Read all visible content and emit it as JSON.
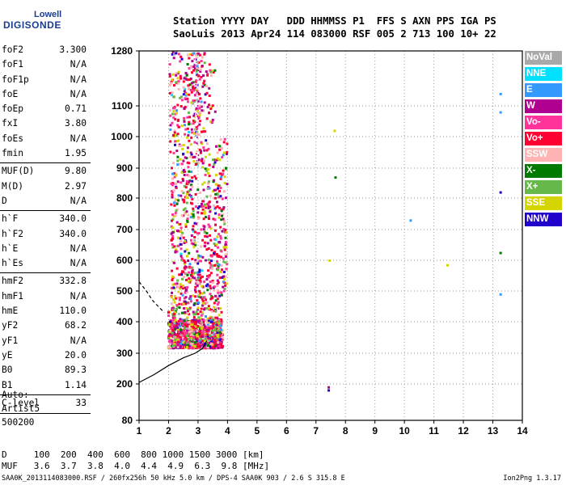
{
  "logo": {
    "line1": "Lowell",
    "line2": "DIGISONDE"
  },
  "header": {
    "line1": "Station YYYY DAY   DDD HHMMSS P1  FFS S AXN PPS IGA PS",
    "line2": "SaoLuis 2013 Apr24 114 083000 RSF 005 2 713 100 10+ 22"
  },
  "params": [
    {
      "name": "foF2",
      "value": "3.300"
    },
    {
      "name": "foF1",
      "value": "N/A"
    },
    {
      "name": "foF1p",
      "value": "N/A"
    },
    {
      "name": "foE",
      "value": "N/A"
    },
    {
      "name": "foEp",
      "value": "0.71"
    },
    {
      "name": "fxI",
      "value": "3.80"
    },
    {
      "name": "foEs",
      "value": "N/A"
    },
    {
      "name": "fmin",
      "value": "1.95"
    },
    {
      "name": "MUF(D)",
      "value": "9.80"
    },
    {
      "name": "M(D)",
      "value": "2.97"
    },
    {
      "name": "D",
      "value": "N/A"
    },
    {
      "name": "h`F",
      "value": "340.0"
    },
    {
      "name": "h`F2",
      "value": "340.0"
    },
    {
      "name": "h`E",
      "value": "N/A"
    },
    {
      "name": "h`Es",
      "value": "N/A"
    },
    {
      "name": "hmF2",
      "value": "332.8"
    },
    {
      "name": "hmF1",
      "value": "N/A"
    },
    {
      "name": "hmE",
      "value": "110.0"
    },
    {
      "name": "yF2",
      "value": "68.2"
    },
    {
      "name": "yF1",
      "value": "N/A"
    },
    {
      "name": "yE",
      "value": "20.0"
    },
    {
      "name": "B0",
      "value": "89.3"
    },
    {
      "name": "B1",
      "value": "1.14"
    },
    {
      "name": "C-level",
      "value": "33"
    }
  ],
  "auto": {
    "line1": "Auto:",
    "line2": "Artist5",
    "line3": "500200"
  },
  "legend": [
    {
      "label": "NoVal",
      "color": "#a9a9a9"
    },
    {
      "label": "NNE",
      "color": "#00e0ff"
    },
    {
      "label": "E",
      "color": "#3399ff"
    },
    {
      "label": "W",
      "color": "#b0008f"
    },
    {
      "label": "Vo-",
      "color": "#ff3399"
    },
    {
      "label": "Vo+",
      "color": "#ff0033"
    },
    {
      "label": "SSW",
      "color": "#ffb3b3"
    },
    {
      "label": "X-",
      "color": "#007a00"
    },
    {
      "label": "X+",
      "color": "#66b84a"
    },
    {
      "label": "SSE",
      "color": "#d4d400"
    },
    {
      "label": "NNW",
      "color": "#2200cc"
    }
  ],
  "footer": {
    "line1": "D     100  200  400  600  800 1000 1500 3000 [km]",
    "line2": "MUF   3.6  3.7  3.8  4.0  4.4  4.9  6.3  9.8 [MHz]",
    "line3": "SAA0K_2013114083000.RSF / 260fx256h 50 kHz 5.0 km / DPS-4 SAA0K 903 / 2.6 S 315.8 E",
    "version": "Ion2Png 1.3.17"
  },
  "chart_data": {
    "type": "scatter",
    "x_ticks": [
      "1",
      "2",
      "3",
      "4",
      "5",
      "6",
      "7",
      "8",
      "9",
      "10",
      "11",
      "12",
      "13",
      "14"
    ],
    "y_ticks": [
      "80",
      "200",
      "300",
      "400",
      "500",
      "600",
      "700",
      "800",
      "900",
      "1000",
      "1100",
      "1280"
    ],
    "xlim": [
      1,
      14
    ],
    "ylim": [
      80,
      1280
    ],
    "grid": true,
    "echo_region": {
      "f_min": 1.95,
      "f_max": 4.7,
      "h_min": 320,
      "h_max": 1280
    },
    "isolated_points": [
      {
        "x": 7.42,
        "y": 190,
        "series": "W"
      },
      {
        "x": 7.42,
        "y": 180,
        "series": "NNW"
      },
      {
        "x": 7.65,
        "y": 870,
        "series": "X-"
      },
      {
        "x": 7.62,
        "y": 1020,
        "series": "SSE"
      },
      {
        "x": 7.45,
        "y": 600,
        "series": "SSE"
      },
      {
        "x": 10.2,
        "y": 730,
        "series": "E"
      },
      {
        "x": 11.45,
        "y": 585,
        "series": "SSE"
      },
      {
        "x": 13.25,
        "y": 1140,
        "series": "E"
      },
      {
        "x": 13.25,
        "y": 1080,
        "series": "E"
      },
      {
        "x": 13.25,
        "y": 820,
        "series": "NNW"
      },
      {
        "x": 13.25,
        "y": 625,
        "series": "X-"
      },
      {
        "x": 13.25,
        "y": 490,
        "series": "E"
      }
    ],
    "trace_curve": [
      {
        "x": 1.0,
        "y": 205
      },
      {
        "x": 1.5,
        "y": 230
      },
      {
        "x": 2.0,
        "y": 260
      },
      {
        "x": 2.5,
        "y": 285
      },
      {
        "x": 2.9,
        "y": 300
      },
      {
        "x": 3.15,
        "y": 315
      },
      {
        "x": 3.3,
        "y": 340
      }
    ],
    "dashed_curve": [
      {
        "x": 1.0,
        "y": 530
      },
      {
        "x": 1.25,
        "y": 500
      },
      {
        "x": 1.45,
        "y": 470
      },
      {
        "x": 1.65,
        "y": 450
      },
      {
        "x": 1.85,
        "y": 430
      }
    ]
  }
}
